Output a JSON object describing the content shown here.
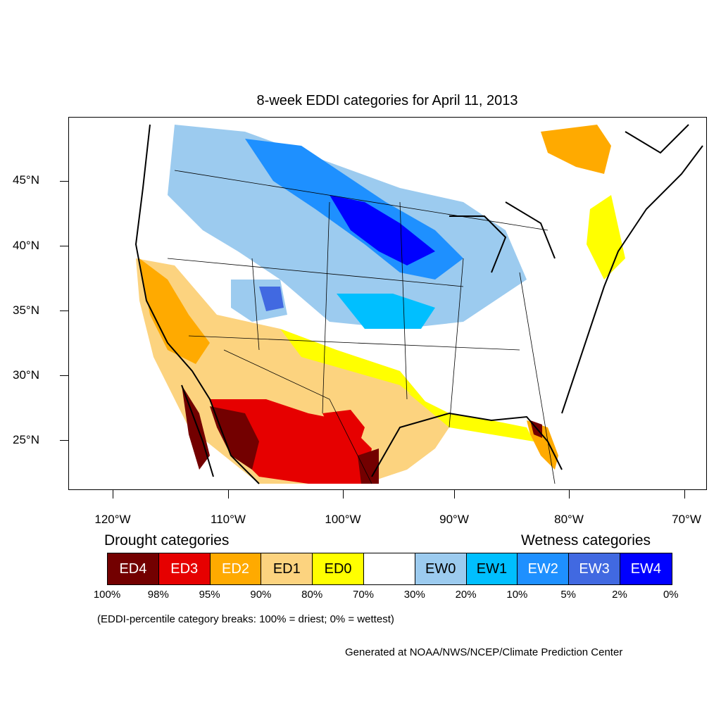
{
  "title": "8-week EDDI categories for April 11, 2013",
  "lat_labels": [
    "45°N",
    "40°N",
    "35°N",
    "30°N",
    "25°N"
  ],
  "lon_labels": [
    "120°W",
    "110°W",
    "100°W",
    "90°W",
    "80°W",
    "70°W"
  ],
  "legend": {
    "drought_heading": "Drought categories",
    "wetness_heading": "Wetness categories",
    "categories": [
      {
        "label": "ED4",
        "color": "#730000",
        "text_color": "#ffffff"
      },
      {
        "label": "ED3",
        "color": "#e60000",
        "text_color": "#ffffff"
      },
      {
        "label": "ED2",
        "color": "#ffaa00",
        "text_color": "#ffffff"
      },
      {
        "label": "ED1",
        "color": "#fcd37f",
        "text_color": "#000000"
      },
      {
        "label": "ED0",
        "color": "#ffff00",
        "text_color": "#000000"
      },
      {
        "label": "",
        "color": "#ffffff",
        "text_color": "#000000"
      },
      {
        "label": "EW0",
        "color": "#9ccbef",
        "text_color": "#000000"
      },
      {
        "label": "EW1",
        "color": "#00bfff",
        "text_color": "#000000"
      },
      {
        "label": "EW2",
        "color": "#1e90ff",
        "text_color": "#ffffff"
      },
      {
        "label": "EW3",
        "color": "#4169e1",
        "text_color": "#ffffff"
      },
      {
        "label": "EW4",
        "color": "#0000ff",
        "text_color": "#ffffff"
      }
    ],
    "breaks": [
      "100%",
      "98%",
      "95%",
      "90%",
      "80%",
      "70%",
      "30%",
      "20%",
      "10%",
      "5%",
      "2%",
      "0%"
    ]
  },
  "note": "(EDDI-percentile category breaks: 100% = driest; 0% = wettest)",
  "credit": "Generated at NOAA/NWS/NCEP/Climate Prediction Center"
}
